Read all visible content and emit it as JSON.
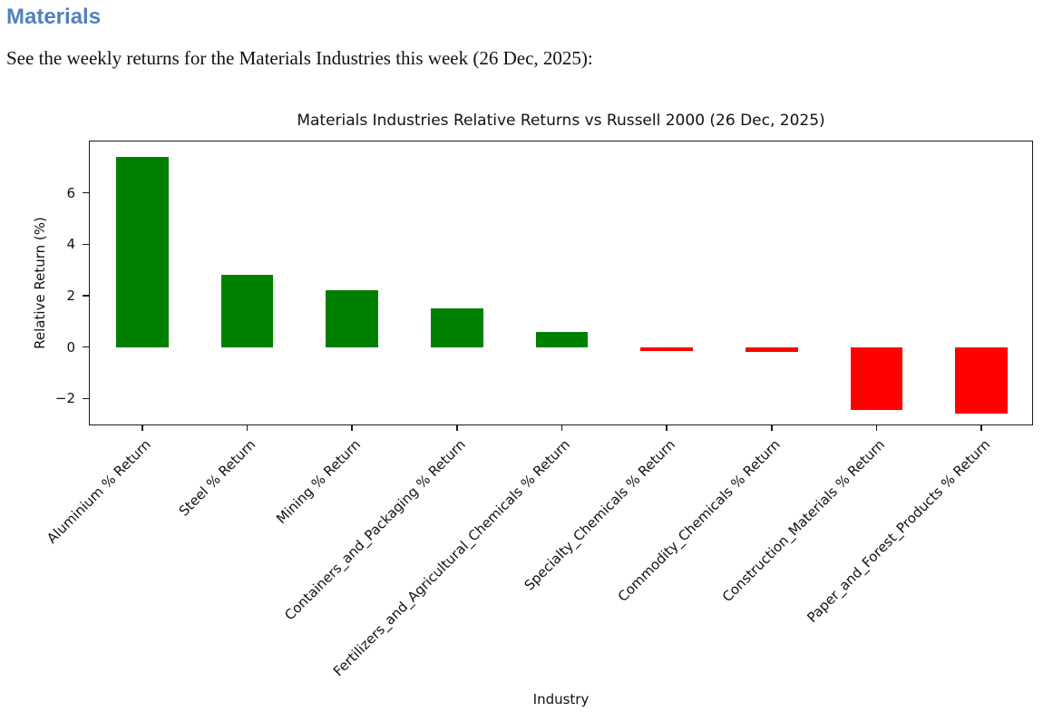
{
  "page": {
    "heading": "Materials",
    "heading_color": "#4f81bd",
    "description": "See the weekly returns for the Materials Industries this week (26 Dec, 2025):"
  },
  "chart_data": {
    "type": "bar",
    "title": "Materials Industries Relative Returns vs Russell 2000 (26 Dec, 2025)",
    "xlabel": "Industry",
    "ylabel": "Relative Return (%)",
    "categories": [
      "Aluminium % Return",
      "Steel % Return",
      "Mining % Return",
      "Containers_and_Packaging % Return",
      "Fertilizers_and_Agricultural_Chemicals % Return",
      "Specialty_Chemicals % Return",
      "Commodity_Chemicals % Return",
      "Construction_Materials % Return",
      "Paper_and_Forest_Products % Return"
    ],
    "values": [
      7.4,
      2.8,
      2.2,
      1.5,
      0.6,
      -0.15,
      -0.2,
      -2.45,
      -2.6
    ],
    "positive_color": "#008000",
    "negative_color": "#ff0000",
    "yticks": [
      6,
      4,
      2,
      0,
      -2
    ],
    "ylim": [
      -3.08,
      8.0
    ],
    "bar_width_fraction": 0.5,
    "grid": false,
    "legend": null,
    "x_tick_rotation_deg": 45
  }
}
